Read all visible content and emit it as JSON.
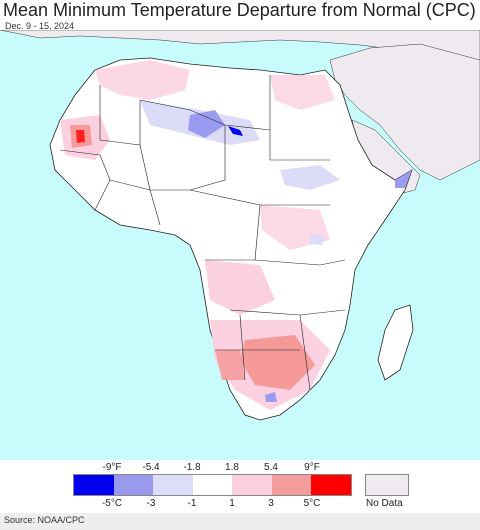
{
  "title": "Mean Minimum Temperature Departure from Normal (CPC)",
  "subtitle": "Dec. 9 - 15, 2024",
  "legend": {
    "fahrenheit_labels": [
      "-9°F",
      "-5.4",
      "-1.8",
      "1.8",
      "5.4",
      "9°F"
    ],
    "celsius_labels": [
      "-5°C",
      "-3",
      "-1",
      "1",
      "3",
      "5°C"
    ],
    "colors": [
      "#0000ee",
      "#9999ee",
      "#ddddfa",
      "#ffffff",
      "#fbcfe0",
      "#f49b9b",
      "#ff0000"
    ],
    "no_data_label": "No Data",
    "no_data_color": "#eeeaf0"
  },
  "source": "Source: NOAA/CPC",
  "map_colors": {
    "ocean": "#c8fcfc",
    "land": "#ffffff",
    "no_data": "#eeeaf0",
    "border": "#222222",
    "light_pink": "#fbd0e0",
    "medium_pink": "#f59999",
    "red": "#ff2020",
    "light_blue": "#dcdcf8",
    "medium_blue": "#9a9af0",
    "dark_blue": "#0000ee"
  }
}
